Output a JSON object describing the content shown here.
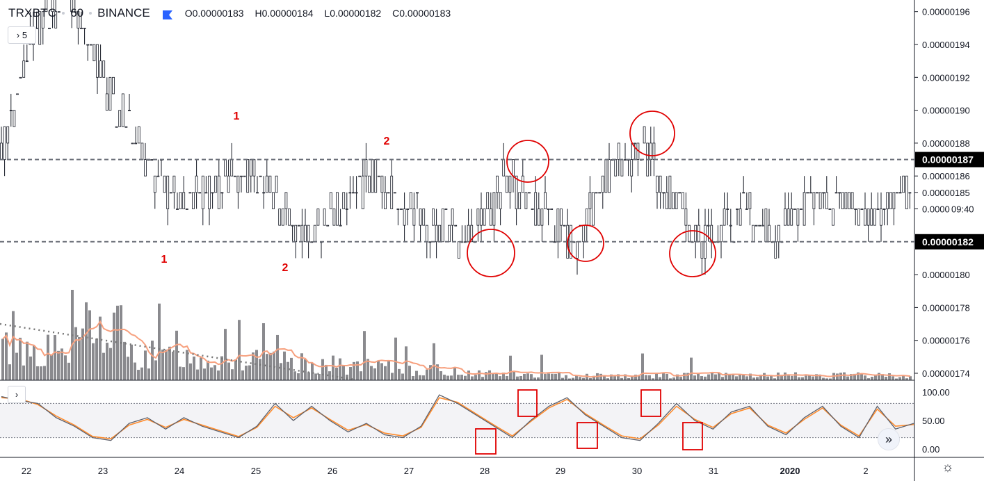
{
  "header": {
    "symbol": "TRXBTC",
    "interval": "60",
    "exchange": "BINANCE",
    "open": "O0.00000183",
    "high": "H0.00000184",
    "low": "L0.00000182",
    "close": "C0.00000183",
    "flag_color": "#2962ff"
  },
  "indicators_toggle": {
    "count": "5",
    "icon": "chevron-right-icon"
  },
  "oscillator_toggle": {
    "icon": "chevron-right-icon"
  },
  "scroll_button": {
    "icon": "double-chevron-right-icon",
    "glyph": "»"
  },
  "settings": {
    "icon": "gear-icon",
    "glyph": "☼"
  },
  "price_scale": {
    "labels": [
      "0.00000196",
      "0.00000194",
      "0.00000192",
      "0.00000190",
      "0.00000188",
      "0.00000186",
      "0.00000185",
      "0.0000",
      "0.00000180",
      "0.00000178",
      "0.00000176",
      "0.00000174"
    ],
    "timer": "09:40",
    "resistance_label": "0.00000187",
    "support_label": "0.00000182"
  },
  "osc_scale": [
    "100.00",
    "50.00",
    "0.00"
  ],
  "time_axis": [
    "22",
    "23",
    "24",
    "25",
    "26",
    "27",
    "28",
    "29",
    "30",
    "31",
    "2020",
    "2"
  ],
  "annotations": [
    "1",
    "1",
    "2",
    "2"
  ],
  "colors": {
    "candle": "#131722",
    "annotation_red": "#e00000",
    "ma_orange": "#f7a17f",
    "volume_gray": "#8a8a8e",
    "stoch_k": "#5d606b",
    "stoch_d": "#ff8c2d",
    "level_line": "#787b86"
  },
  "chart_data": {
    "type": "candlestick",
    "symbol": "TRXBTC",
    "interval": "60",
    "exchange": "BINANCE",
    "x_categories": [
      "22",
      "23",
      "24",
      "25",
      "26",
      "27",
      "28",
      "29",
      "30",
      "31",
      "2020",
      "2"
    ],
    "y_range": [
      1.73e-06,
      1.97e-06
    ],
    "horizontal_levels": [
      1.87e-06,
      1.82e-06
    ],
    "price_series": [
      {
        "x": "22",
        "close": 1.87e-06
      },
      {
        "x": "22.5",
        "close": 1.95e-06
      },
      {
        "x": "23",
        "close": 1.97e-06
      },
      {
        "x": "23.3",
        "close": 1.92e-06
      },
      {
        "x": "23.6",
        "close": 1.88e-06
      },
      {
        "x": "24",
        "close": 1.85e-06
      },
      {
        "x": "24.5",
        "close": 1.85e-06
      },
      {
        "x": "24.8",
        "close": 1.86e-06
      },
      {
        "x": "25",
        "close": 1.85e-06
      },
      {
        "x": "25.5",
        "close": 1.82e-06
      },
      {
        "x": "26",
        "close": 1.84e-06
      },
      {
        "x": "26.5",
        "close": 1.86e-06
      },
      {
        "x": "27",
        "close": 1.84e-06
      },
      {
        "x": "27.5",
        "close": 1.83e-06
      },
      {
        "x": "28",
        "close": 1.82e-06
      },
      {
        "x": "28.5",
        "close": 1.86e-06
      },
      {
        "x": "29",
        "close": 1.84e-06
      },
      {
        "x": "29.4",
        "close": 1.82e-06
      },
      {
        "x": "29.8",
        "close": 1.86e-06
      },
      {
        "x": "30.2",
        "close": 1.88e-06
      },
      {
        "x": "30.6",
        "close": 1.84e-06
      },
      {
        "x": "30.8",
        "close": 1.82e-06
      },
      {
        "x": "31",
        "close": 1.84e-06
      },
      {
        "x": "31.5",
        "close": 1.82e-06
      },
      {
        "x": "2020",
        "close": 1.85e-06
      },
      {
        "x": "2020.5",
        "close": 1.84e-06
      },
      {
        "x": "2",
        "close": 1.84e-06
      },
      {
        "x": "2.5",
        "close": 1.85e-06
      }
    ],
    "oscillator": {
      "range": [
        0,
        100
      ],
      "levels": [
        80,
        20
      ],
      "k": [
        92,
        85,
        80,
        55,
        40,
        20,
        15,
        45,
        55,
        35,
        55,
        40,
        30,
        20,
        40,
        80,
        50,
        75,
        50,
        30,
        45,
        25,
        20,
        40,
        95,
        80,
        60,
        40,
        20,
        50,
        75,
        90,
        60,
        40,
        20,
        15,
        45,
        80,
        50,
        35,
        65,
        75,
        40,
        25,
        55,
        75,
        40,
        20,
        75,
        35,
        45
      ],
      "d": [
        90,
        88,
        78,
        58,
        42,
        22,
        18,
        42,
        52,
        38,
        52,
        42,
        32,
        22,
        38,
        75,
        55,
        72,
        52,
        33,
        43,
        28,
        23,
        38,
        90,
        82,
        62,
        42,
        23,
        48,
        72,
        87,
        62,
        42,
        23,
        18,
        42,
        75,
        52,
        38,
        62,
        72,
        42,
        28,
        52,
        72,
        42,
        23,
        70,
        40,
        43
      ]
    }
  }
}
